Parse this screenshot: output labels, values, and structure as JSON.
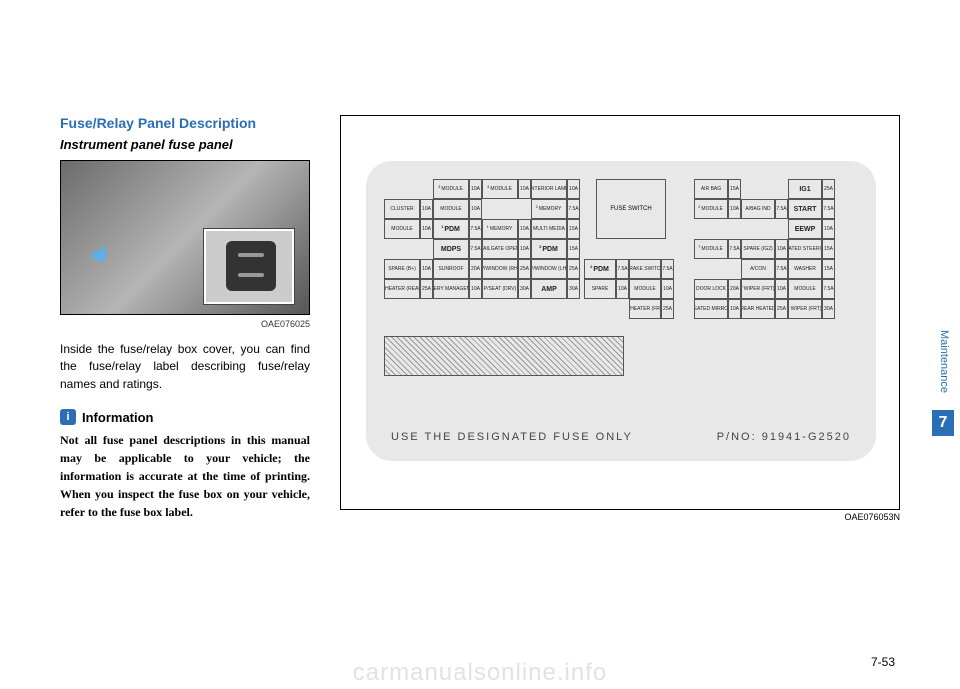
{
  "side": {
    "label": "Maintenance",
    "chapter": "7"
  },
  "page_num": "7-53",
  "watermark": "carmanualsonline.info",
  "left": {
    "heading": "Fuse/Relay Panel Description",
    "subhead": "Instrument panel fuse panel",
    "photo_id": "OAE076025",
    "body": "Inside the fuse/relay box cover, you can find the fuse/relay label describing fuse/relay names and ratings.",
    "info_icon": "i",
    "info_title": "Information",
    "info_text": "Not all fuse panel descriptions in this manual may be applicable to your vehicle; the information is accurate at the time of printing. When you inspect the fuse box on your vehicle, refer to the fuse box label."
  },
  "diagram": {
    "id": "OAE076053N",
    "fuse_switch": "FUSE\nSWITCH",
    "footer_left": "USE THE DESIGNATED FUSE ONLY",
    "footer_right": "P/NO: 91941-G2520",
    "left_block": {
      "row1": [
        {
          "n": "",
          "a": ""
        },
        {
          "n": "MODULE",
          "a": "10A",
          "sup": "3"
        },
        {
          "n": "MODULE",
          "a": "10A",
          "sup": "4"
        },
        {
          "n": "INTERIOR LAMP",
          "a": "10A"
        }
      ],
      "row2": [
        {
          "n": "CLUSTER",
          "a": "10A"
        },
        {
          "n": "MODULE",
          "a": "10A"
        },
        {
          "n": "",
          "a": ""
        },
        {
          "n": "MEMORY",
          "a": "7.5A",
          "sup": "2"
        }
      ],
      "row3": [
        {
          "n": "MODULE",
          "a": "10A"
        },
        {
          "n": "PDM",
          "a": "7.5A",
          "big": true,
          "sup": "1"
        },
        {
          "n": "MEMORY",
          "a": "10A",
          "sup": "1"
        },
        {
          "n": "MULTI MEDIA",
          "a": "15A"
        }
      ],
      "row4": [
        {
          "n": "",
          "a": ""
        },
        {
          "n": "MDPS",
          "a": "7.5A",
          "big": true
        },
        {
          "n": "TAILGATE OPEN",
          "a": "10A"
        },
        {
          "n": "PDM",
          "a": "15A",
          "big": true,
          "sup": "3"
        }
      ],
      "row5": [
        {
          "n": "SPARE (B+)",
          "a": "10A"
        },
        {
          "n": "SUNROOF",
          "a": "20A"
        },
        {
          "n": "P/WINDOW (RH)",
          "a": "25A"
        },
        {
          "n": "P/WINDOW (LH)",
          "a": "25A"
        }
      ],
      "row6": [
        {
          "n": "S/HEATER (REAR)",
          "a": "25A"
        },
        {
          "n": "BATTERY MANAGEMENT",
          "a": "10A"
        },
        {
          "n": "P/SEAT (DRV)",
          "a": "30A"
        },
        {
          "n": "AMP",
          "a": "30A",
          "big": true
        }
      ]
    },
    "mid_block": {
      "row5": [
        {
          "n": "PDM",
          "a": "7.5A",
          "big": true,
          "sup": "2"
        },
        {
          "n": "BRAKE SWITCH",
          "a": "7.5A"
        }
      ],
      "row6": [
        {
          "n": "SPARE",
          "a": "10A"
        },
        {
          "n": "MODULE",
          "a": "10A"
        }
      ],
      "row7": [
        {
          "n": "",
          "a": ""
        },
        {
          "n": "S/HEATER (FRT)",
          "a": "25A"
        }
      ]
    },
    "right_block": {
      "row1": [
        {
          "n": "AIR BAG",
          "a": "15A"
        },
        {
          "n": "",
          "a": ""
        },
        {
          "n": "IG1",
          "a": "25A",
          "big": true
        }
      ],
      "row2": [
        {
          "n": "MODULE",
          "a": "10A",
          "sup": "2"
        },
        {
          "n": "A/BAG IND",
          "a": "7.5A"
        },
        {
          "n": "START",
          "a": "7.5A",
          "big": true
        }
      ],
      "row3": [
        {
          "n": "",
          "a": ""
        },
        {
          "n": "",
          "a": ""
        },
        {
          "n": "EEWP",
          "a": "10A",
          "big": true
        }
      ],
      "row4": [
        {
          "n": "MODULE",
          "a": "7.5A",
          "sup": "7"
        },
        {
          "n": "SPARE (IG2)",
          "a": "10A"
        },
        {
          "n": "HEATED STEERING",
          "a": "15A"
        }
      ],
      "row5": [
        {
          "n": "",
          "a": ""
        },
        {
          "n": "A/CON",
          "a": "7.5A"
        },
        {
          "n": "WASHER",
          "a": "15A"
        }
      ],
      "row6": [
        {
          "n": "DOOR LOCK",
          "a": "20A"
        },
        {
          "n": "WIPER (FRT)",
          "a": "10A",
          "sup": "2"
        },
        {
          "n": "MODULE",
          "a": "7.5A"
        }
      ],
      "row7": [
        {
          "n": "HEATED MIRROR",
          "a": "10A"
        },
        {
          "n": "REAR HEATED",
          "a": "25A"
        },
        {
          "n": "WIPER (FRT)",
          "a": "30A",
          "sup": "1"
        }
      ]
    }
  },
  "style": {
    "blue": "#2a6fb5",
    "plate_bg": "#e8e8e8",
    "border": "#555555"
  }
}
